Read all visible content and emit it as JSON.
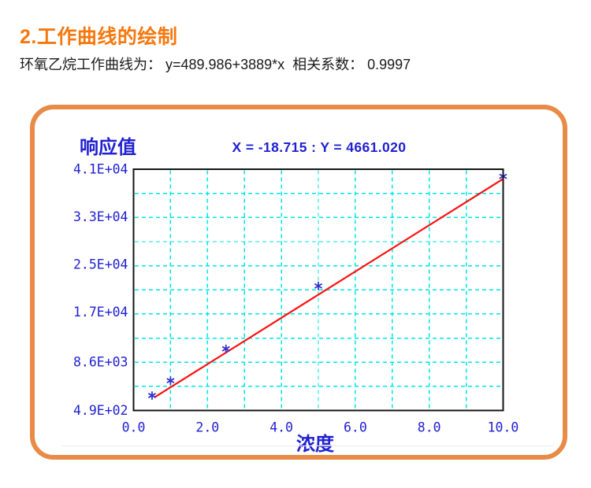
{
  "page": {
    "heading": "2.工作曲线的绘制",
    "subtitle": "环氧乙烷工作曲线为： y=489.986+3889*x  相关系数： 0.9997"
  },
  "panel": {
    "border_color": "#e88b47"
  },
  "chart_data": {
    "type": "scatter",
    "readout": "X = -18.715 : Y = 4661.020",
    "xlabel": "浓度",
    "ylabel": "响应值",
    "xlim": [
      0,
      10
    ],
    "ylim": [
      490,
      41000
    ],
    "x_ticks": {
      "labels": [
        "0.0",
        "2.0",
        "4.0",
        "6.0",
        "8.0",
        "10.0"
      ],
      "values": [
        0,
        2,
        4,
        6,
        8,
        10
      ]
    },
    "y_ticks": {
      "labels": [
        "4.9E+02",
        "8.6E+03",
        "1.7E+04",
        "2.5E+04",
        "3.3E+04",
        "4.1E+04"
      ],
      "values": [
        490,
        8600,
        17000,
        25000,
        33000,
        41000
      ]
    },
    "grid": {
      "on": true,
      "color": "#00e6e6",
      "style": "dashed",
      "x_step": 1.0,
      "y_divisions": 10
    },
    "points": {
      "marker": "asterisk",
      "color": "#3333cc",
      "x": [
        0.5,
        1.0,
        2.5,
        5.0,
        10.0
      ],
      "y": [
        3000,
        5500,
        10850,
        21400,
        39800
      ]
    },
    "fit_line": {
      "color": "#ff0f0f",
      "equation": "y=489.986+3889*x",
      "intercept": 489.986,
      "slope": 3889,
      "x_range": [
        0.57,
        10.0
      ],
      "correlation": 0.9997
    },
    "colors": {
      "text_blue": "#2121d2",
      "plot_border": "#141414"
    }
  }
}
